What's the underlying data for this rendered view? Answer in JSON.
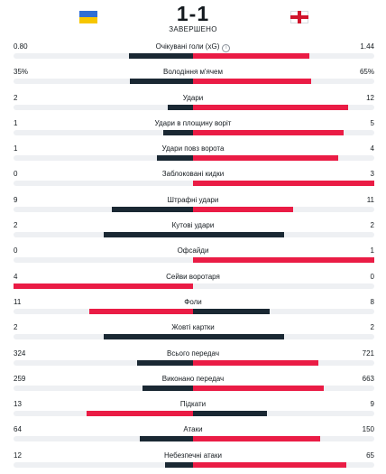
{
  "match": {
    "score": "1-1",
    "status": "ЗАВЕРШЕНО",
    "home_flag": "ukraine-flag",
    "away_flag": "england-flag"
  },
  "colors": {
    "winner": "#ea1c45",
    "other": "#1a2833",
    "track": "#eef0f3"
  },
  "stats": [
    {
      "label": "Очікувані голи (xG)",
      "home": "0.80",
      "away": "1.44",
      "home_share": 0.357,
      "away_share": 0.643,
      "info": true
    },
    {
      "label": "Володіння м'ячем",
      "home": "35%",
      "away": "65%",
      "home_share": 0.35,
      "away_share": 0.65
    },
    {
      "label": "Удари",
      "home": "2",
      "away": "12",
      "home_share": 0.143,
      "away_share": 0.857
    },
    {
      "label": "Удари в площину воріт",
      "home": "1",
      "away": "5",
      "home_share": 0.167,
      "away_share": 0.833
    },
    {
      "label": "Удари повз ворота",
      "home": "1",
      "away": "4",
      "home_share": 0.2,
      "away_share": 0.8
    },
    {
      "label": "Заблоковані кидки",
      "home": "0",
      "away": "3",
      "home_share": 0,
      "away_share": 1
    },
    {
      "label": "Штрафні удари",
      "home": "9",
      "away": "11",
      "home_share": 0.45,
      "away_share": 0.55
    },
    {
      "label": "Кутові удари",
      "home": "2",
      "away": "2",
      "home_share": 0.5,
      "away_share": 0.5
    },
    {
      "label": "Офсайди",
      "home": "0",
      "away": "1",
      "home_share": 0,
      "away_share": 1
    },
    {
      "label": "Сейви воротаря",
      "home": "4",
      "away": "0",
      "home_share": 1,
      "away_share": 0
    },
    {
      "label": "Фоли",
      "home": "11",
      "away": "8",
      "home_share": 0.579,
      "away_share": 0.421
    },
    {
      "label": "Жовті картки",
      "home": "2",
      "away": "2",
      "home_share": 0.5,
      "away_share": 0.5
    },
    {
      "label": "Всього передач",
      "home": "324",
      "away": "721",
      "home_share": 0.31,
      "away_share": 0.69
    },
    {
      "label": "Виконано передач",
      "home": "259",
      "away": "663",
      "home_share": 0.281,
      "away_share": 0.719
    },
    {
      "label": "Підкати",
      "home": "13",
      "away": "9",
      "home_share": 0.591,
      "away_share": 0.409
    },
    {
      "label": "Атаки",
      "home": "64",
      "away": "150",
      "home_share": 0.299,
      "away_share": 0.701
    },
    {
      "label": "Небезпечні атаки",
      "home": "12",
      "away": "65",
      "home_share": 0.156,
      "away_share": 0.844
    }
  ]
}
